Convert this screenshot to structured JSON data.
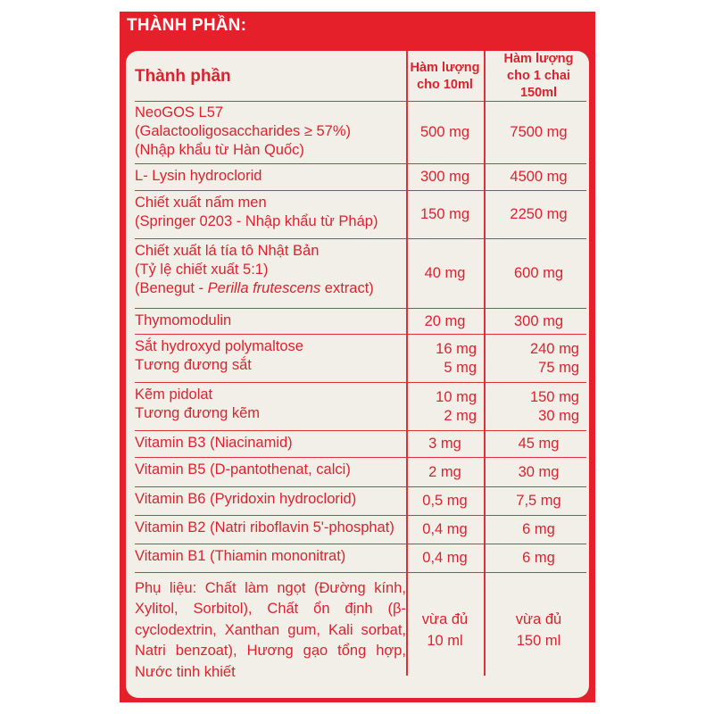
{
  "title": "THÀNH PHẦN:",
  "colors": {
    "background": "#e5202b",
    "panel": "#f2efe9",
    "text": "#d9232e"
  },
  "table": {
    "headers": [
      "Thành phần",
      "Hàm lượng cho 10ml",
      "Hàm lượng cho 1 chai 150ml"
    ],
    "rows": [
      {
        "name": [
          "NeoGOS L57",
          "(Galactooligosaccharides ≥ 57%)",
          "(Nhập khẩu từ Hàn Quốc)"
        ],
        "per10": [
          "500 mg"
        ],
        "per150": [
          "7500 mg"
        ]
      },
      {
        "name": [
          "L- Lysin hydroclorid"
        ],
        "per10": [
          "300 mg"
        ],
        "per150": [
          "4500 mg"
        ]
      },
      {
        "name": [
          "Chiết xuất nấm men",
          "(Springer 0203 - Nhập khẩu từ Pháp)"
        ],
        "per10": [
          "150 mg"
        ],
        "per150": [
          "2250 mg"
        ]
      },
      {
        "name": [
          "Chiết xuất lá tía tô Nhật Bản",
          "(Tỷ lệ chiết xuất 5:1)",
          "(Benegut - Perilla frutescens extract)"
        ],
        "per10": [
          "40 mg"
        ],
        "per150": [
          "600 mg"
        ]
      },
      {
        "name": [
          "Thymomodulin"
        ],
        "per10": [
          "20 mg"
        ],
        "per150": [
          "300 mg"
        ]
      },
      {
        "name": [
          "Sắt hydroxyd polymaltose",
          "Tương đương sắt"
        ],
        "per10": [
          "16 mg",
          "5 mg"
        ],
        "per150": [
          "240 mg",
          "75 mg"
        ]
      },
      {
        "name": [
          "Kẽm pidolat",
          "Tương đương kẽm"
        ],
        "per10": [
          "10 mg",
          "2 mg"
        ],
        "per150": [
          "150 mg",
          "30 mg"
        ]
      },
      {
        "name": [
          "Vitamin B3 (Niacinamid)"
        ],
        "per10": [
          "3 mg"
        ],
        "per150": [
          "45 mg"
        ]
      },
      {
        "name": [
          "Vitamin B5 (D-pantothenat, calci)"
        ],
        "per10": [
          "2 mg"
        ],
        "per150": [
          "30 mg"
        ]
      },
      {
        "name": [
          "Vitamin B6 (Pyridoxin hydroclorid)"
        ],
        "per10": [
          "0,5 mg"
        ],
        "per150": [
          "7,5 mg"
        ]
      },
      {
        "name": [
          "Vitamin B2 (Natri riboflavin 5'-phosphat)"
        ],
        "per10": [
          "0,4 mg"
        ],
        "per150": [
          "6 mg"
        ]
      },
      {
        "name": [
          "Vitamin B1 (Thiamin mononitrat)"
        ],
        "per10": [
          "0,4 mg"
        ],
        "per150": [
          "6 mg"
        ]
      }
    ],
    "excipients": {
      "text": "Phụ liệu: Chất làm ngọt (Đường kính, Xylitol, Sorbitol), Chất ổn định (β-cyclodextrin, Xanthan gum, Kali sorbat, Natri benzoat), Hương gạo tổng hợp, Nước tinh khiết",
      "per10": [
        "vừa đủ",
        "10 ml"
      ],
      "per150": [
        "vừa đủ",
        "150 ml"
      ]
    }
  }
}
